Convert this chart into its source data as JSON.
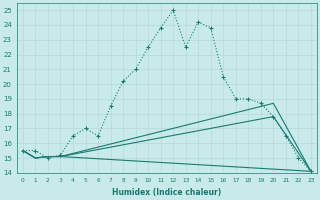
{
  "xlabel": "Humidex (Indice chaleur)",
  "background_color": "#c8eaea",
  "grid_color": "#b8d8d8",
  "line_color": "#1a7a6e",
  "xlim": [
    -0.5,
    23.5
  ],
  "ylim": [
    14,
    25.5
  ],
  "yticks": [
    14,
    15,
    16,
    17,
    18,
    19,
    20,
    21,
    22,
    23,
    24,
    25
  ],
  "xticks": [
    0,
    1,
    2,
    3,
    4,
    5,
    6,
    7,
    8,
    9,
    10,
    11,
    12,
    13,
    14,
    15,
    16,
    17,
    18,
    19,
    20,
    21,
    22,
    23
  ],
  "series1_x": [
    0,
    1,
    2,
    3,
    4,
    5,
    6,
    7,
    8,
    9,
    10,
    11,
    12,
    13,
    14,
    15,
    16,
    17,
    18,
    19,
    20,
    21,
    22,
    23
  ],
  "series1_y": [
    15.5,
    15.5,
    15.0,
    15.2,
    16.5,
    17.0,
    16.5,
    18.5,
    20.2,
    21.0,
    22.5,
    23.8,
    25.0,
    22.5,
    24.2,
    23.8,
    20.5,
    19.0,
    19.0,
    18.7,
    17.8,
    16.5,
    15.0,
    14.1
  ],
  "series2_x": [
    0,
    1,
    2,
    3,
    23
  ],
  "series2_y": [
    15.5,
    15.0,
    15.1,
    15.1,
    14.1
  ],
  "series3_x": [
    0,
    1,
    2,
    3,
    20,
    23
  ],
  "series3_y": [
    15.5,
    15.0,
    15.1,
    15.1,
    17.8,
    14.1
  ],
  "series4_x": [
    0,
    1,
    2,
    3,
    20,
    23
  ],
  "series4_y": [
    15.5,
    15.0,
    15.1,
    15.1,
    18.7,
    14.1
  ]
}
